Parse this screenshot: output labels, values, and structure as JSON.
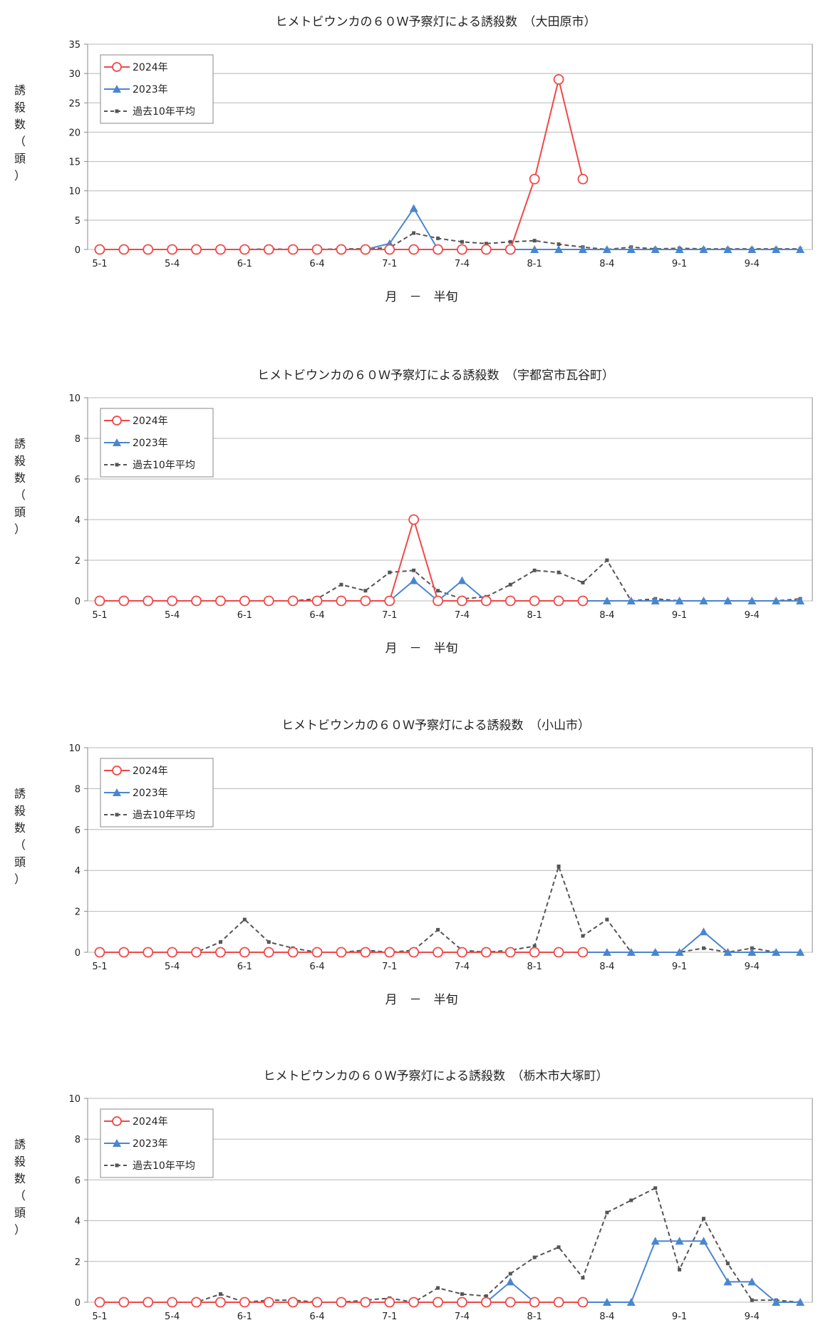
{
  "charts": [
    {
      "title": "ヒメトビウンカの６０Ｗ予察灯による誘殺数　（大田原市）",
      "xlabel": "月　－　半旬",
      "ylabel": "誘殺数（頭）"
    },
    {
      "title": "ヒメトビウンカの６０Ｗ予察灯による誘殺数　（宇都宮市瓦谷町）",
      "xlabel": "月　－　半旬",
      "ylabel": "誘殺数（頭）"
    },
    {
      "title": "ヒメトビウンカの６０Ｗ予察灯による誘殺数　（小山市）",
      "xlabel": "月　－　半旬",
      "ylabel": "誘殺数（頭）"
    },
    {
      "title": "ヒメトビウンカの６０Ｗ予察灯による誘殺数　（栃木市大塚町）",
      "xlabel": "月　－　半旬",
      "ylabel": "誘殺数（頭）"
    }
  ],
  "legend": {
    "s2024": "2024年",
    "s2023": "2023年",
    "savg": "過去10年平均"
  },
  "colors": {
    "s2024": "#f04848",
    "s2023": "#4a86d0",
    "avg": "#555555",
    "grid": "#b8b8b8",
    "axis": "#888888"
  },
  "chart_data": [
    {
      "type": "line",
      "title": "ヒメトビウンカの６０Ｗ予察灯による誘殺数　（大田原市）",
      "xlabel": "月　－　半旬",
      "ylabel": "誘殺数（頭）",
      "ylim": [
        0,
        35
      ],
      "yticks": [
        0,
        5,
        10,
        15,
        20,
        25,
        30,
        35
      ],
      "categories": [
        "5-1",
        "5-2",
        "5-3",
        "5-4",
        "5-5",
        "5-6",
        "6-1",
        "6-2",
        "6-3",
        "6-4",
        "6-5",
        "6-6",
        "7-1",
        "7-2",
        "7-3",
        "7-4",
        "7-5",
        "7-6",
        "8-1",
        "8-2",
        "8-3",
        "8-4",
        "8-5",
        "8-6",
        "9-1",
        "9-2",
        "9-3",
        "9-4",
        "9-5",
        "9-6"
      ],
      "tick_labels": [
        "5-1",
        "5-4",
        "6-1",
        "6-4",
        "7-1",
        "7-4",
        "8-1",
        "8-4",
        "9-1",
        "9-4"
      ],
      "grid": true,
      "legend_position": "top-left",
      "series": [
        {
          "name": "2024年",
          "values": [
            0,
            0,
            0,
            0,
            0,
            0,
            0,
            0,
            0,
            0,
            0,
            0,
            0,
            0,
            0,
            0,
            0,
            0,
            12,
            29,
            12,
            null,
            null,
            null,
            null,
            null,
            null,
            null,
            null,
            null
          ]
        },
        {
          "name": "2023年",
          "values": [
            0,
            0,
            0,
            0,
            0,
            0,
            0,
            0,
            0,
            0,
            0,
            0,
            1,
            7,
            0,
            0,
            0,
            0,
            0,
            0,
            0,
            0,
            0,
            0,
            0,
            0,
            0,
            0,
            0,
            0
          ]
        },
        {
          "name": "過去10年平均",
          "values": [
            0,
            0,
            0,
            0,
            0,
            0,
            0,
            0.1,
            0,
            0,
            0.1,
            0.1,
            0.3,
            2.8,
            1.9,
            1.3,
            1.0,
            1.3,
            1.5,
            0.9,
            0.4,
            0,
            0.4,
            0.1,
            0.2,
            0.1,
            0.1,
            0.1,
            0.1,
            0.1
          ]
        }
      ]
    },
    {
      "type": "line",
      "title": "ヒメトビウンカの６０Ｗ予察灯による誘殺数　（宇都宮市瓦谷町）",
      "xlabel": "月　－　半旬",
      "ylabel": "誘殺数（頭）",
      "ylim": [
        0,
        10
      ],
      "yticks": [
        0,
        2,
        4,
        6,
        8,
        10
      ],
      "categories": [
        "5-1",
        "5-2",
        "5-3",
        "5-4",
        "5-5",
        "5-6",
        "6-1",
        "6-2",
        "6-3",
        "6-4",
        "6-5",
        "6-6",
        "7-1",
        "7-2",
        "7-3",
        "7-4",
        "7-5",
        "7-6",
        "8-1",
        "8-2",
        "8-3",
        "8-4",
        "8-5",
        "8-6",
        "9-1",
        "9-2",
        "9-3",
        "9-4",
        "9-5",
        "9-6"
      ],
      "tick_labels": [
        "5-1",
        "5-4",
        "6-1",
        "6-4",
        "7-1",
        "7-4",
        "8-1",
        "8-4",
        "9-1",
        "9-4"
      ],
      "grid": true,
      "legend_position": "top-left",
      "series": [
        {
          "name": "2024年",
          "values": [
            0,
            0,
            0,
            0,
            0,
            0,
            0,
            0,
            0,
            0,
            0,
            0,
            0,
            4,
            0,
            0,
            0,
            0,
            0,
            0,
            0,
            null,
            null,
            null,
            null,
            null,
            null,
            null,
            null,
            null
          ]
        },
        {
          "name": "2023年",
          "values": [
            0,
            0,
            0,
            0,
            0,
            0,
            0,
            0,
            0,
            0,
            0,
            0,
            0,
            1,
            0,
            1,
            0,
            0,
            0,
            0,
            0,
            0,
            0,
            0,
            0,
            0,
            0,
            0,
            0,
            0
          ]
        },
        {
          "name": "過去10年平均",
          "values": [
            0,
            0,
            0,
            0,
            0,
            0,
            0,
            0,
            0,
            0.1,
            0.8,
            0.5,
            1.4,
            1.5,
            0.5,
            0.1,
            0.2,
            0.8,
            1.5,
            1.4,
            0.9,
            2.0,
            0,
            0.1,
            0,
            0,
            0,
            0,
            0,
            0.1
          ]
        }
      ]
    },
    {
      "type": "line",
      "title": "ヒメトビウンカの６０Ｗ予察灯による誘殺数　（小山市）",
      "xlabel": "月　－　半旬",
      "ylabel": "誘殺数（頭）",
      "ylim": [
        0,
        10
      ],
      "yticks": [
        0,
        2,
        4,
        6,
        8,
        10
      ],
      "categories": [
        "5-1",
        "5-2",
        "5-3",
        "5-4",
        "5-5",
        "5-6",
        "6-1",
        "6-2",
        "6-3",
        "6-4",
        "6-5",
        "6-6",
        "7-1",
        "7-2",
        "7-3",
        "7-4",
        "7-5",
        "7-6",
        "8-1",
        "8-2",
        "8-3",
        "8-4",
        "8-5",
        "8-6",
        "9-1",
        "9-2",
        "9-3",
        "9-4",
        "9-5",
        "9-6"
      ],
      "tick_labels": [
        "5-1",
        "5-4",
        "6-1",
        "6-4",
        "7-1",
        "7-4",
        "8-1",
        "8-4",
        "9-1",
        "9-4"
      ],
      "grid": true,
      "legend_position": "top-left",
      "series": [
        {
          "name": "2024年",
          "values": [
            0,
            0,
            0,
            0,
            0,
            0,
            0,
            0,
            0,
            0,
            0,
            0,
            0,
            0,
            0,
            0,
            0,
            0,
            0,
            0,
            0,
            null,
            null,
            null,
            null,
            null,
            null,
            null,
            null,
            null
          ]
        },
        {
          "name": "2023年",
          "values": [
            0,
            0,
            0,
            0,
            0,
            0,
            0,
            0,
            0,
            0,
            0,
            0,
            0,
            0,
            0,
            0,
            0,
            0,
            0,
            0,
            0,
            0,
            0,
            0,
            0,
            1,
            0,
            0,
            0,
            0
          ]
        },
        {
          "name": "過去10年平均",
          "values": [
            0,
            0,
            0,
            0,
            0,
            0.5,
            1.6,
            0.5,
            0.2,
            0,
            0,
            0.1,
            0,
            0.1,
            1.1,
            0.1,
            0,
            0.1,
            0.3,
            4.2,
            0.8,
            1.6,
            0,
            0,
            0,
            0.2,
            0,
            0.2,
            0,
            0
          ]
        }
      ]
    },
    {
      "type": "line",
      "title": "ヒメトビウンカの６０Ｗ予察灯による誘殺数　（栃木市大塚町）",
      "xlabel": "月　－　半旬",
      "ylabel": "誘殺数（頭）",
      "ylim": [
        0,
        10
      ],
      "yticks": [
        0,
        2,
        4,
        6,
        8,
        10
      ],
      "categories": [
        "5-1",
        "5-2",
        "5-3",
        "5-4",
        "5-5",
        "5-6",
        "6-1",
        "6-2",
        "6-3",
        "6-4",
        "6-5",
        "6-6",
        "7-1",
        "7-2",
        "7-3",
        "7-4",
        "7-5",
        "7-6",
        "8-1",
        "8-2",
        "8-3",
        "8-4",
        "8-5",
        "8-6",
        "9-1",
        "9-2",
        "9-3",
        "9-4",
        "9-5",
        "9-6"
      ],
      "tick_labels": [
        "5-1",
        "5-4",
        "6-1",
        "6-4",
        "7-1",
        "7-4",
        "8-1",
        "8-4",
        "9-1",
        "9-4"
      ],
      "grid": true,
      "legend_position": "top-left",
      "series": [
        {
          "name": "2024年",
          "values": [
            0,
            0,
            0,
            0,
            0,
            0,
            0,
            0,
            0,
            0,
            0,
            0,
            0,
            0,
            0,
            0,
            0,
            0,
            0,
            0,
            0,
            null,
            null,
            null,
            null,
            null,
            null,
            null,
            null,
            null
          ]
        },
        {
          "name": "2023年",
          "values": [
            0,
            0,
            0,
            0,
            0,
            0,
            0,
            0,
            0,
            0,
            0,
            0,
            0,
            0,
            0,
            0,
            0,
            1,
            0,
            0,
            0,
            0,
            0,
            3,
            3,
            3,
            1,
            1,
            0,
            0
          ]
        },
        {
          "name": "過去10年平均",
          "values": [
            0,
            0,
            0,
            0,
            0,
            0.4,
            0,
            0.1,
            0.1,
            0,
            0,
            0.1,
            0.2,
            0,
            0.7,
            0.4,
            0.3,
            1.4,
            2.2,
            2.7,
            1.2,
            4.4,
            5.0,
            5.6,
            1.6,
            4.1,
            1.9,
            0.1,
            0.1,
            0
          ]
        }
      ]
    }
  ]
}
